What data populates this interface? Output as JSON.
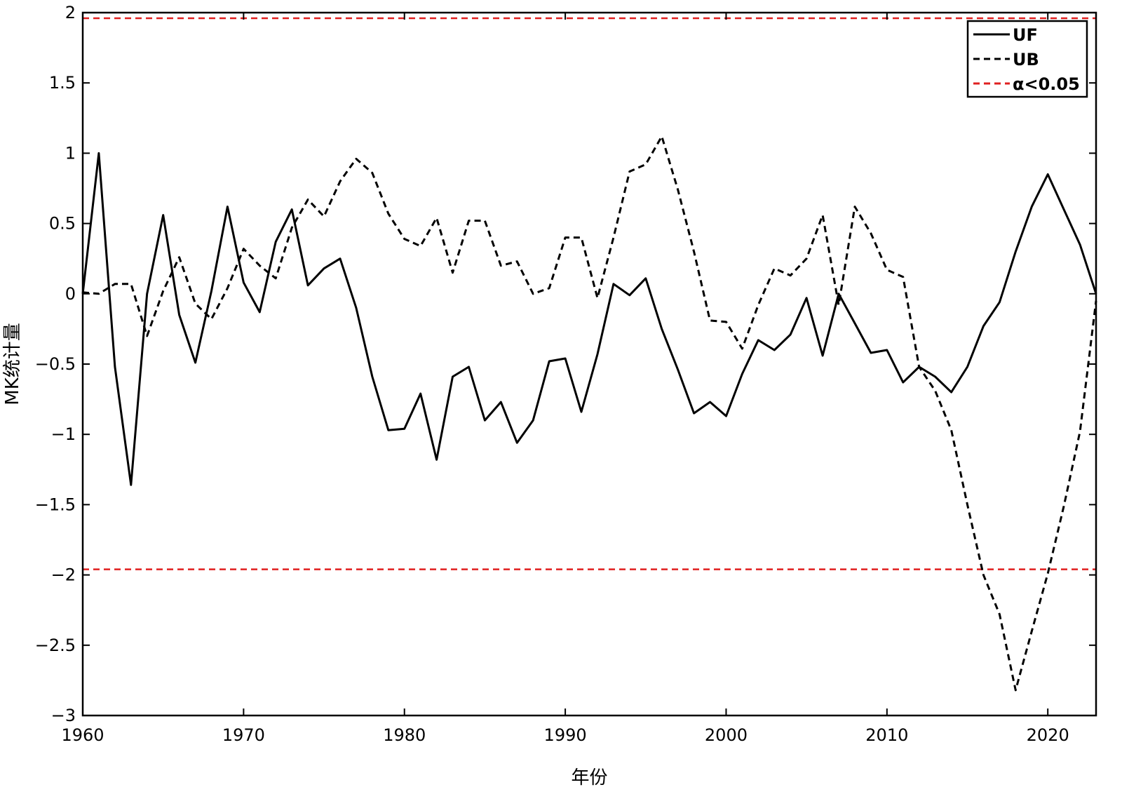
{
  "chart_data": {
    "type": "line",
    "title": "",
    "xlabel": "年份",
    "ylabel": "MK统计量",
    "xlim": [
      1960,
      2023
    ],
    "ylim": [
      -3,
      2
    ],
    "xticks": [
      1960,
      1970,
      1980,
      1990,
      2000,
      2010,
      2020
    ],
    "xtick_labels": [
      "1960",
      "1970",
      "1980",
      "1990",
      "2000",
      "2010",
      "2020"
    ],
    "yticks": [
      2,
      1.5,
      1,
      0.5,
      0,
      -0.5,
      -1,
      -1.5,
      -2,
      -2.5,
      -3
    ],
    "ytick_labels": [
      "2",
      "1.5",
      "1",
      "0.5",
      "0",
      "−0.5",
      "−1",
      "−1.5",
      "−2",
      "−2.5",
      "−3"
    ],
    "grid": false,
    "legend_position": "top-right",
    "x": [
      1960,
      1961,
      1962,
      1963,
      1964,
      1965,
      1966,
      1967,
      1968,
      1969,
      1970,
      1971,
      1972,
      1973,
      1974,
      1975,
      1976,
      1977,
      1978,
      1979,
      1980,
      1981,
      1982,
      1983,
      1984,
      1985,
      1986,
      1987,
      1988,
      1989,
      1990,
      1991,
      1992,
      1993,
      1994,
      1995,
      1996,
      1997,
      1998,
      1999,
      2000,
      2001,
      2002,
      2003,
      2004,
      2005,
      2006,
      2007,
      2008,
      2009,
      2010,
      2011,
      2012,
      2013,
      2014,
      2015,
      2016,
      2017,
      2018,
      2019,
      2020,
      2021,
      2022,
      2023
    ],
    "series": [
      {
        "name": "UF",
        "style": "solid",
        "color": "#000000",
        "values": [
          0,
          1.0,
          -0.52,
          -1.36,
          0,
          0.56,
          -0.15,
          -0.49,
          0.02,
          0.62,
          0.08,
          -0.13,
          0.37,
          0.6,
          0.06,
          0.18,
          0.25,
          -0.1,
          -0.59,
          -0.97,
          -0.96,
          -0.71,
          -1.18,
          -0.59,
          -0.52,
          -0.9,
          -0.77,
          -1.06,
          -0.9,
          -0.48,
          -0.46,
          -0.84,
          -0.43,
          0.07,
          -0.01,
          0.11,
          -0.25,
          -0.54,
          -0.85,
          -0.77,
          -0.87,
          -0.57,
          -0.33,
          -0.4,
          -0.29,
          -0.03,
          -0.44,
          0,
          -0.21,
          -0.42,
          -0.4,
          -0.63,
          -0.52,
          -0.59,
          -0.7,
          -0.52,
          -0.23,
          -0.06,
          0.3,
          0.62,
          0.85,
          0.6,
          0.35,
          0.0
        ]
      },
      {
        "name": "UB",
        "style": "dashed",
        "color": "#000000",
        "values": [
          0.01,
          0,
          0.07,
          0.07,
          -0.3,
          0.02,
          0.26,
          -0.07,
          -0.18,
          0.04,
          0.32,
          0.2,
          0.11,
          0.47,
          0.67,
          0.55,
          0.8,
          0.96,
          0.86,
          0.57,
          0.39,
          0.34,
          0.54,
          0.15,
          0.52,
          0.52,
          0.2,
          0.23,
          0.0,
          0.04,
          0.4,
          0.4,
          -0.03,
          0.4,
          0.87,
          0.92,
          1.12,
          0.74,
          0.3,
          -0.19,
          -0.2,
          -0.39,
          -0.08,
          0.18,
          0.13,
          0.25,
          0.56,
          -0.08,
          0.62,
          0.43,
          0.17,
          0.12,
          -0.52,
          -0.69,
          -0.97,
          -1.5,
          -2.0,
          -2.28,
          -2.82,
          -2.4,
          -1.99,
          -1.51,
          -0.98,
          -0.05
        ]
      }
    ],
    "reference_lines": {
      "name": "α<0.05",
      "style": "dashed",
      "color": "#e02020",
      "values": [
        1.96,
        -1.96
      ]
    }
  },
  "legend": {
    "items": [
      {
        "label": "UF",
        "style": "solid",
        "color": "#000000"
      },
      {
        "label": "UB",
        "style": "dashed",
        "color": "#000000"
      },
      {
        "label": "α<0.05",
        "style": "dashed",
        "color": "#e02020"
      }
    ]
  }
}
